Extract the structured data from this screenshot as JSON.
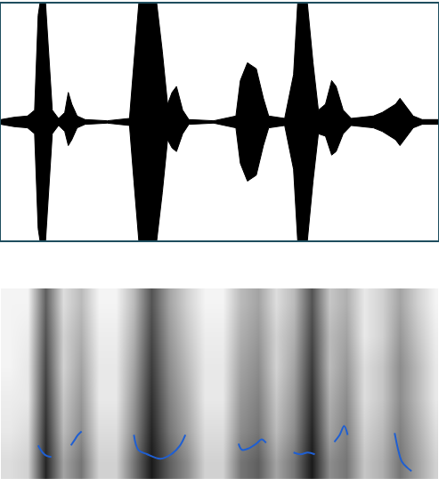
{
  "chart_data": [
    {
      "type": "area",
      "x": [
        0,
        0.075,
        0.15,
        0.19,
        0.21,
        0.225,
        0.25,
        0.27,
        0.29,
        0.325,
        0.36,
        0.38,
        0.4,
        0.43,
        0.475,
        0.6,
        0.725,
        0.75,
        0.78,
        0.875,
        0.91,
        0.94,
        0.965,
        0.99,
        1.025,
        1.06,
        1.2,
        1.325,
        1.35,
        1.39,
        1.44,
        1.48,
        1.51,
        1.6,
        1.65,
        1.675,
        1.725,
        1.76,
        1.79,
        1.83,
        1.865,
        1.89,
        1.93,
        1.975,
        2.1,
        2.15,
        2.225,
        2.25,
        2.29,
        2.325,
        2.375,
        2.465
      ],
      "upper": [
        0.02,
        0.04,
        0.05,
        0.1,
        0.9,
        1.05,
        1.05,
        0.6,
        0.1,
        0.03,
        0.08,
        0.25,
        0.15,
        0.05,
        0.02,
        0.01,
        0.03,
        0.5,
        1.05,
        1.05,
        0.6,
        0.15,
        0.25,
        0.3,
        0.1,
        0.02,
        0.01,
        0.05,
        0.35,
        0.5,
        0.45,
        0.2,
        0.05,
        0.03,
        0.4,
        1.05,
        1.05,
        0.5,
        0.1,
        0.15,
        0.35,
        0.3,
        0.1,
        0.03,
        0.05,
        0.08,
        0.15,
        0.2,
        0.12,
        0.05,
        0.02,
        0.02
      ],
      "lower": [
        -0.02,
        -0.04,
        -0.05,
        -0.1,
        -0.9,
        -1.05,
        -1.05,
        -0.6,
        -0.1,
        -0.03,
        -0.08,
        -0.2,
        -0.15,
        -0.05,
        -0.02,
        -0.01,
        -0.03,
        -0.5,
        -1.05,
        -1.05,
        -0.6,
        -0.15,
        -0.22,
        -0.25,
        -0.1,
        -0.02,
        -0.01,
        -0.05,
        -0.35,
        -0.5,
        -0.45,
        -0.2,
        -0.05,
        -0.03,
        -0.4,
        -1.05,
        -1.05,
        -0.5,
        -0.1,
        -0.12,
        -0.28,
        -0.25,
        -0.1,
        -0.03,
        -0.05,
        -0.08,
        -0.15,
        -0.2,
        -0.12,
        -0.05,
        -0.02,
        -0.02
      ],
      "color": "#000000",
      "xlim": [
        0,
        2.465
      ],
      "ylim": [
        -1,
        1
      ],
      "grid": false,
      "tick_labels": false
    },
    {
      "type": "heatmap",
      "x": [
        0.05,
        0.15,
        0.25,
        0.35,
        0.45,
        0.55,
        0.65,
        0.75,
        0.85,
        0.95,
        1.05,
        1.15,
        1.25,
        1.35,
        1.45,
        1.55,
        1.65,
        1.75,
        1.85,
        1.95,
        2.05,
        2.15,
        2.25,
        2.35,
        2.45
      ],
      "y": [
        417,
        1250,
        2083,
        2917,
        3750,
        4583
      ],
      "z": [
        [
          0.15,
          0.2,
          0.95,
          0.4,
          0.6,
          0.2,
          0.2,
          0.6,
          1.0,
          0.7,
          0.5,
          0.2,
          0.2,
          0.6,
          0.7,
          0.4,
          0.6,
          1.0,
          0.5,
          0.6,
          0.25,
          0.35,
          0.6,
          0.4,
          0.2
        ],
        [
          0.1,
          0.15,
          0.9,
          0.3,
          0.5,
          0.15,
          0.15,
          0.5,
          0.95,
          0.6,
          0.4,
          0.15,
          0.15,
          0.5,
          0.6,
          0.3,
          0.5,
          0.95,
          0.4,
          0.55,
          0.2,
          0.3,
          0.55,
          0.35,
          0.15
        ],
        [
          0.08,
          0.1,
          0.85,
          0.25,
          0.45,
          0.1,
          0.1,
          0.45,
          0.9,
          0.55,
          0.35,
          0.1,
          0.1,
          0.45,
          0.55,
          0.25,
          0.45,
          0.9,
          0.35,
          0.5,
          0.15,
          0.25,
          0.5,
          0.3,
          0.1
        ],
        [
          0.05,
          0.1,
          0.8,
          0.2,
          0.4,
          0.1,
          0.1,
          0.4,
          0.85,
          0.5,
          0.3,
          0.1,
          0.1,
          0.4,
          0.5,
          0.2,
          0.4,
          0.85,
          0.3,
          0.45,
          0.15,
          0.25,
          0.5,
          0.3,
          0.1
        ],
        [
          0.05,
          0.08,
          0.75,
          0.2,
          0.35,
          0.08,
          0.08,
          0.35,
          0.8,
          0.45,
          0.25,
          0.08,
          0.08,
          0.35,
          0.45,
          0.2,
          0.35,
          0.8,
          0.3,
          0.4,
          0.1,
          0.2,
          0.45,
          0.25,
          0.08
        ],
        [
          0.05,
          0.05,
          0.7,
          0.15,
          0.3,
          0.05,
          0.05,
          0.3,
          0.75,
          0.4,
          0.2,
          0.05,
          0.05,
          0.3,
          0.4,
          0.15,
          0.3,
          0.75,
          0.25,
          0.35,
          0.1,
          0.2,
          0.4,
          0.2,
          0.05
        ]
      ],
      "zlim": [
        0,
        1
      ],
      "xlim": [
        0,
        2.465
      ],
      "ylim": [
        0,
        5000
      ],
      "pitch": [
        {
          "x": [
            0.21,
            0.235,
            0.26,
            0.285
          ],
          "y": [
            880,
            694,
            602,
            579
          ]
        },
        {
          "x": [
            0.395,
            0.415,
            0.435,
            0.455
          ],
          "y": [
            880,
            1019,
            1157,
            1250
          ]
        },
        {
          "x": [
            0.75,
            0.775,
            0.825,
            0.9,
            0.96,
            1.01,
            1.04
          ],
          "y": [
            1157,
            764,
            648,
            532,
            648,
            880,
            1157
          ]
        },
        {
          "x": [
            1.34,
            1.36,
            1.4,
            1.44,
            1.47,
            1.495
          ],
          "y": [
            926,
            764,
            810,
            926,
            1042,
            949
          ]
        },
        {
          "x": [
            1.65,
            1.69,
            1.73,
            1.77
          ],
          "y": [
            694,
            648,
            694,
            648
          ]
        },
        {
          "x": [
            1.88,
            1.91,
            1.935,
            1.955
          ],
          "y": [
            972,
            1157,
            1389,
            1157
          ]
        },
        {
          "x": [
            2.22,
            2.24,
            2.26,
            2.29,
            2.315
          ],
          "y": [
            1204,
            764,
            463,
            301,
            208
          ]
        }
      ],
      "color": "#1f5fd2",
      "grid": false,
      "tick_labels": false
    }
  ]
}
